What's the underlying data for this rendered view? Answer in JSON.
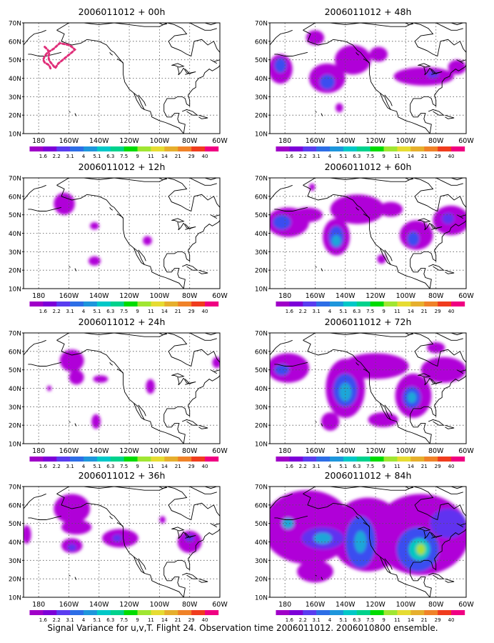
{
  "caption": "Signal Variance for u,v,T. Flight 24. Observation time 2006011012. 2006010800 ensemble.",
  "map": {
    "lat_labels": [
      "10N",
      "20N",
      "30N",
      "40N",
      "50N",
      "60N",
      "70N"
    ],
    "lon_labels": [
      "180",
      "160W",
      "140W",
      "120W",
      "100W",
      "80W",
      "60W"
    ],
    "lat_range": [
      10,
      70
    ],
    "lon_range": [
      -190,
      -60
    ],
    "grid": "dotted"
  },
  "colorbar": {
    "labels": [
      "1.6",
      "2.2",
      "3.1",
      "4",
      "5.1",
      "6.3",
      "7.5",
      "9",
      "11",
      "14",
      "21",
      "29",
      "40"
    ],
    "colors": [
      "#a000c8",
      "#7d00d8",
      "#5a3cf0",
      "#2d6ee6",
      "#1e96dc",
      "#00c8c8",
      "#00d28c",
      "#00dc00",
      "#a0e632",
      "#e6dc32",
      "#e6af2d",
      "#f08228",
      "#f03c1e",
      "#f00082"
    ]
  },
  "panels": [
    {
      "title": "2006011012 + 00h",
      "hour": 0,
      "blobs": []
    },
    {
      "title": "2006011012 + 12h",
      "hour": 12,
      "blobs": [
        {
          "lon": -163,
          "lat": 56,
          "rx": 7,
          "ry": 6,
          "level": 0
        },
        {
          "lon": -143,
          "lat": 44,
          "rx": 3,
          "ry": 2,
          "level": 0
        },
        {
          "lon": -143,
          "lat": 25,
          "rx": 4,
          "ry": 2.5,
          "level": 0
        },
        {
          "lon": -108,
          "lat": 36,
          "rx": 3,
          "ry": 2.5,
          "level": 0
        }
      ]
    },
    {
      "title": "2006011012 + 24h",
      "hour": 24,
      "blobs": [
        {
          "lon": -158,
          "lat": 55,
          "rx": 8,
          "ry": 6,
          "level": 0
        },
        {
          "lon": -155,
          "lat": 46,
          "rx": 5,
          "ry": 4,
          "level": 0
        },
        {
          "lon": -139,
          "lat": 45,
          "rx": 5,
          "ry": 2,
          "level": 0
        },
        {
          "lon": -142,
          "lat": 22,
          "rx": 3,
          "ry": 4,
          "level": 0
        },
        {
          "lon": -106,
          "lat": 41,
          "rx": 3,
          "ry": 4,
          "level": 0
        },
        {
          "lon": -173,
          "lat": 40,
          "rx": 1.5,
          "ry": 1.5,
          "level": 0
        },
        {
          "lon": -62,
          "lat": 54,
          "rx": 3,
          "ry": 3,
          "level": 0
        }
      ]
    },
    {
      "title": "2006011012 + 36h",
      "hour": 36,
      "blobs": [
        {
          "lon": -158,
          "lat": 58,
          "rx": 12,
          "ry": 8,
          "level": 0
        },
        {
          "lon": -155,
          "lat": 48,
          "rx": 10,
          "ry": 4,
          "level": 0
        },
        {
          "lon": -158,
          "lat": 38,
          "rx": 7,
          "ry": 4,
          "level": 0
        },
        {
          "lon": -158,
          "lat": 37,
          "rx": 3,
          "ry": 2,
          "level": 1
        },
        {
          "lon": -126,
          "lat": 42,
          "rx": 12,
          "ry": 5,
          "level": 0
        },
        {
          "lon": -128,
          "lat": 42,
          "rx": 3,
          "ry": 2,
          "level": 1
        },
        {
          "lon": -188,
          "lat": 44,
          "rx": 3,
          "ry": 5,
          "level": 0
        },
        {
          "lon": -80,
          "lat": 40,
          "rx": 8,
          "ry": 6,
          "level": 0
        },
        {
          "lon": -80,
          "lat": 42,
          "rx": 3,
          "ry": 2,
          "level": 1
        },
        {
          "lon": -98,
          "lat": 52,
          "rx": 2,
          "ry": 2,
          "level": 0
        }
      ]
    },
    {
      "title": "2006011012 + 48h",
      "hour": 48,
      "blobs": [
        {
          "lon": -183,
          "lat": 45,
          "rx": 8,
          "ry": 8,
          "level": 0
        },
        {
          "lon": -183,
          "lat": 47,
          "rx": 4,
          "ry": 4,
          "level": 2
        },
        {
          "lon": -152,
          "lat": 40,
          "rx": 12,
          "ry": 8,
          "level": 0
        },
        {
          "lon": -152,
          "lat": 38,
          "rx": 5,
          "ry": 4,
          "level": 2
        },
        {
          "lon": -135,
          "lat": 50,
          "rx": 12,
          "ry": 8,
          "level": 0
        },
        {
          "lon": -118,
          "lat": 53,
          "rx": 6,
          "ry": 4,
          "level": 0
        },
        {
          "lon": -160,
          "lat": 62,
          "rx": 6,
          "ry": 4,
          "level": 0
        },
        {
          "lon": -144,
          "lat": 24,
          "rx": 2.5,
          "ry": 2.5,
          "level": 0
        },
        {
          "lon": -88,
          "lat": 41,
          "rx": 20,
          "ry": 5,
          "level": 0
        },
        {
          "lon": -66,
          "lat": 46,
          "rx": 6,
          "ry": 4,
          "level": 0
        },
        {
          "lon": -82,
          "lat": 42,
          "rx": 4,
          "ry": 2,
          "level": 1
        }
      ]
    },
    {
      "title": "2006011012 + 60h",
      "hour": 60,
      "blobs": [
        {
          "lon": -178,
          "lat": 46,
          "rx": 14,
          "ry": 8,
          "level": 0
        },
        {
          "lon": -182,
          "lat": 46,
          "rx": 6,
          "ry": 4,
          "level": 2
        },
        {
          "lon": -146,
          "lat": 38,
          "rx": 9,
          "ry": 10,
          "level": 0
        },
        {
          "lon": -146,
          "lat": 38,
          "rx": 5,
          "ry": 6,
          "level": 2
        },
        {
          "lon": -146,
          "lat": 36,
          "rx": 3,
          "ry": 3,
          "level": 4
        },
        {
          "lon": -132,
          "lat": 53,
          "rx": 18,
          "ry": 8,
          "level": 0
        },
        {
          "lon": -110,
          "lat": 53,
          "rx": 8,
          "ry": 4,
          "level": 0
        },
        {
          "lon": -165,
          "lat": 50,
          "rx": 10,
          "ry": 4,
          "level": 0
        },
        {
          "lon": -162,
          "lat": 65,
          "rx": 2,
          "ry": 2,
          "level": 0
        },
        {
          "lon": -93,
          "lat": 39,
          "rx": 11,
          "ry": 8,
          "level": 0
        },
        {
          "lon": -95,
          "lat": 37,
          "rx": 4,
          "ry": 4,
          "level": 2
        },
        {
          "lon": -70,
          "lat": 47,
          "rx": 12,
          "ry": 8,
          "level": 0
        },
        {
          "lon": -72,
          "lat": 48,
          "rx": 4,
          "ry": 3,
          "level": 1
        },
        {
          "lon": -116,
          "lat": 26,
          "rx": 3,
          "ry": 2.5,
          "level": 0
        }
      ]
    },
    {
      "title": "2006011012 + 72h",
      "hour": 72,
      "blobs": [
        {
          "lon": -178,
          "lat": 51,
          "rx": 14,
          "ry": 8,
          "level": 0
        },
        {
          "lon": -182,
          "lat": 50,
          "rx": 5,
          "ry": 3,
          "level": 2
        },
        {
          "lon": -140,
          "lat": 40,
          "rx": 13,
          "ry": 16,
          "level": 0
        },
        {
          "lon": -140,
          "lat": 39,
          "rx": 8,
          "ry": 9,
          "level": 2
        },
        {
          "lon": -140,
          "lat": 38,
          "rx": 4,
          "ry": 5,
          "level": 4
        },
        {
          "lon": -150,
          "lat": 22,
          "rx": 6,
          "ry": 5,
          "level": 0
        },
        {
          "lon": -115,
          "lat": 23,
          "rx": 10,
          "ry": 4,
          "level": 0
        },
        {
          "lon": -120,
          "lat": 52,
          "rx": 22,
          "ry": 7,
          "level": 0
        },
        {
          "lon": -95,
          "lat": 36,
          "rx": 12,
          "ry": 12,
          "level": 0
        },
        {
          "lon": -96,
          "lat": 35,
          "rx": 6,
          "ry": 6,
          "level": 2
        },
        {
          "lon": -96,
          "lat": 35,
          "rx": 3,
          "ry": 3,
          "level": 4
        },
        {
          "lon": -75,
          "lat": 50,
          "rx": 15,
          "ry": 7,
          "level": 0
        },
        {
          "lon": -80,
          "lat": 62,
          "rx": 6,
          "ry": 3,
          "level": 0
        }
      ]
    },
    {
      "title": "2006011012 + 84h",
      "hour": 84,
      "blobs": [
        {
          "lon": -165,
          "lat": 48,
          "rx": 30,
          "ry": 20,
          "level": 0
        },
        {
          "lon": -125,
          "lat": 44,
          "rx": 25,
          "ry": 20,
          "level": 0
        },
        {
          "lon": -90,
          "lat": 44,
          "rx": 32,
          "ry": 22,
          "level": 0
        },
        {
          "lon": -155,
          "lat": 42,
          "rx": 14,
          "ry": 6,
          "level": 1
        },
        {
          "lon": -155,
          "lat": 42,
          "rx": 6,
          "ry": 3,
          "level": 4
        },
        {
          "lon": -130,
          "lat": 40,
          "rx": 10,
          "ry": 14,
          "level": 2
        },
        {
          "lon": -130,
          "lat": 40,
          "rx": 4,
          "ry": 6,
          "level": 4
        },
        {
          "lon": -160,
          "lat": 24,
          "rx": 12,
          "ry": 6,
          "level": 0
        },
        {
          "lon": -92,
          "lat": 36,
          "rx": 14,
          "ry": 12,
          "level": 2
        },
        {
          "lon": -91,
          "lat": 36,
          "rx": 7,
          "ry": 6,
          "level": 5
        },
        {
          "lon": -90,
          "lat": 36,
          "rx": 3,
          "ry": 3,
          "level": 8
        },
        {
          "lon": -178,
          "lat": 50,
          "rx": 4,
          "ry": 3,
          "level": 4
        },
        {
          "lon": -72,
          "lat": 50,
          "rx": 12,
          "ry": 8,
          "level": 1
        }
      ]
    }
  ]
}
